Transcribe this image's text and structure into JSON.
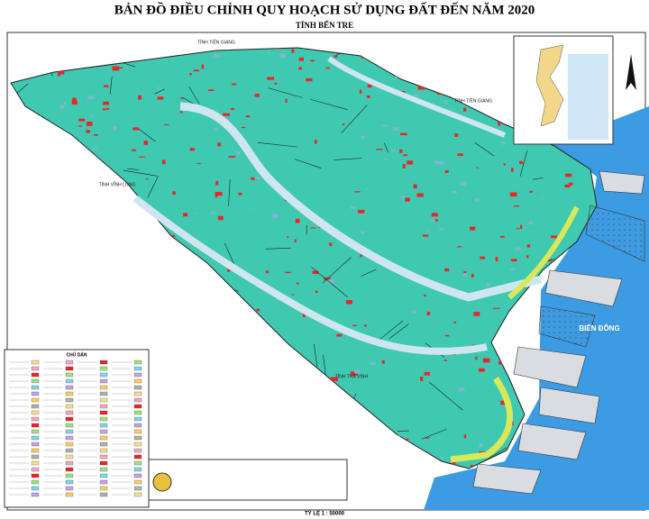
{
  "header": {
    "title": "BẢN ĐỒ ĐIỀU CHỈNH QUY HOẠCH SỬ DỤNG ĐẤT ĐẾN NĂM 2020",
    "subtitle": "TỈNH BẾN TRE"
  },
  "labels": [
    "TỈNH TIỀN GIANG",
    "TỈNH TIỀN GIANG",
    "TỈNH VĨNH LONG",
    "TỈNH TRÀ VINH",
    "BIỂN ĐÔNG"
  ],
  "legend": {
    "title": "CHÚ DẪN"
  },
  "scale": "TỶ LỆ 1 : 50000"
}
